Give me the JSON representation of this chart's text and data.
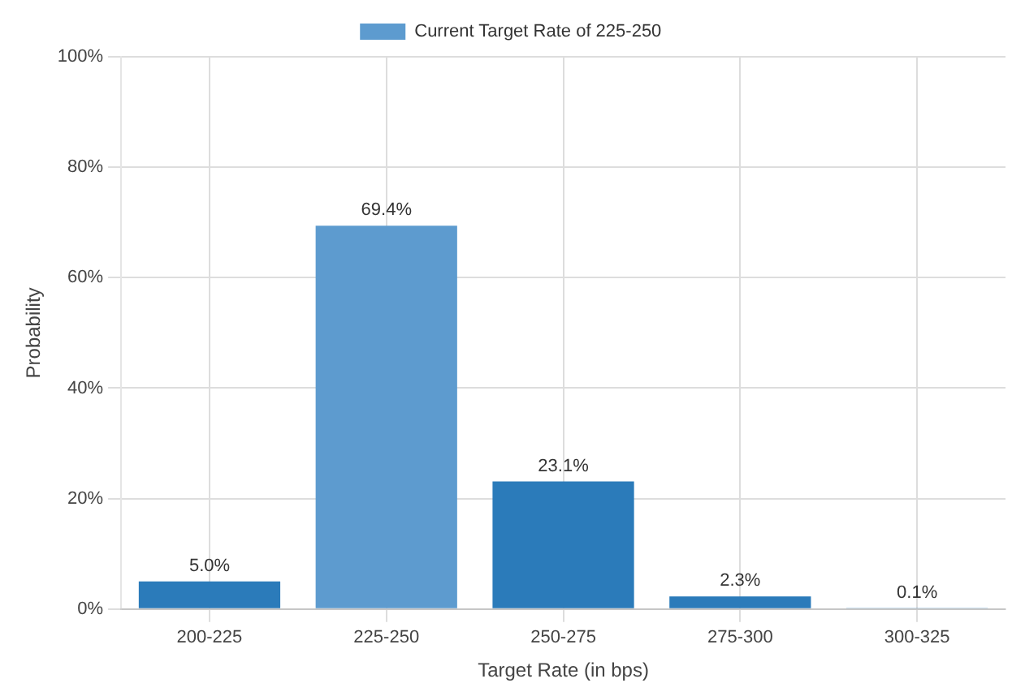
{
  "chart_data": {
    "type": "bar",
    "xlabel": "Target Rate (in bps)",
    "ylabel": "Probability",
    "categories": [
      "200-225",
      "225-250",
      "250-275",
      "275-300",
      "300-325"
    ],
    "series": [
      {
        "color": "#2b7bba",
        "values": [
          5.0,
          null,
          23.1,
          2.3,
          0.1
        ],
        "value_labels": [
          "5.0%",
          null,
          "23.1%",
          "2.3%",
          "0.1%"
        ]
      },
      {
        "name": "Current Target Rate of 225-250",
        "color": "#5d9bcf",
        "values": [
          null,
          69.4,
          null,
          null,
          null
        ],
        "value_labels": [
          null,
          "69.4%",
          null,
          null,
          null
        ]
      }
    ],
    "ylim": [
      0,
      100
    ],
    "yticks": [
      {
        "value": 0,
        "label": "0%"
      },
      {
        "value": 20,
        "label": "20%"
      },
      {
        "value": 40,
        "label": "40%"
      },
      {
        "value": 60,
        "label": "60%"
      },
      {
        "value": 80,
        "label": "80%"
      },
      {
        "value": 100,
        "label": "100%"
      }
    ],
    "grid": true,
    "legend": "top"
  }
}
